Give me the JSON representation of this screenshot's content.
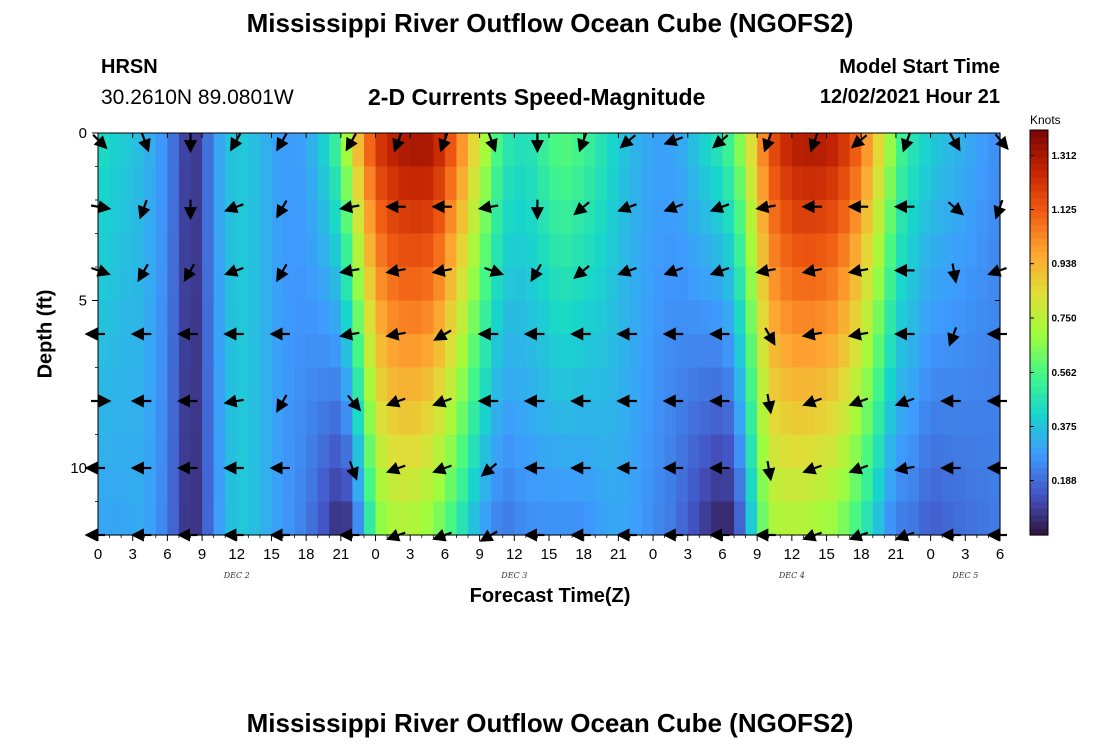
{
  "page": {
    "title": "Mississippi River Outflow Ocean Cube (NGOFS2)",
    "bottom_title": "Mississippi River Outflow Ocean Cube (NGOFS2)",
    "station_name": "HRSN",
    "station_coords": "30.2610N  89.0801W",
    "variable_title": "2-D Currents Speed-Magnitude",
    "model_start_label": "Model Start Time",
    "model_start_value": "12/02/2021 Hour 21",
    "xlabel": "Forecast Time(Z)",
    "ylabel": "Depth (ft)",
    "colorbar_unit": "Knots"
  },
  "chart_data": {
    "type": "heatmap",
    "title": "2-D Currents Speed-Magnitude",
    "xlabel": "Forecast Time(Z)",
    "ylabel": "Depth (ft)",
    "x_tick_labels": [
      "0",
      "3",
      "6",
      "9",
      "12",
      "15",
      "18",
      "21",
      "0",
      "3",
      "6",
      "9",
      "12",
      "15",
      "18",
      "21",
      "0",
      "3",
      "6",
      "9",
      "12",
      "15",
      "18",
      "21",
      "0",
      "3",
      "6"
    ],
    "x_range_hours": [
      0,
      78
    ],
    "day_labels": [
      {
        "text": "DEC 2",
        "hour": 12
      },
      {
        "text": "DEC 3",
        "hour": 36
      },
      {
        "text": "DEC 4",
        "hour": 60
      },
      {
        "text": "DEC 5",
        "hour": 75
      }
    ],
    "y_ticks": [
      0,
      5,
      10
    ],
    "ylim": [
      0,
      12
    ],
    "y_inverted": true,
    "colorbar": {
      "unit": "Knots",
      "ticks": [
        "1.312",
        "1.125",
        "0.938",
        "0.750",
        "0.562",
        "0.375",
        "0.188"
      ],
      "tick_values": [
        1.312,
        1.125,
        0.938,
        0.75,
        0.562,
        0.375,
        0.188
      ],
      "range": [
        0,
        1.4
      ],
      "colormap": [
        "#30123b",
        "#4454c4",
        "#3e9bfe",
        "#18d6cb",
        "#46f884",
        "#a2fc3c",
        "#e1dd37",
        "#fea331",
        "#f05b12",
        "#c42503",
        "#7a0403"
      ]
    },
    "depth_rows_ft": [
      0,
      1,
      2,
      3,
      4,
      5,
      6,
      7,
      8,
      9,
      10,
      11,
      12
    ],
    "speed_profile": {
      "hours": [
        0,
        2,
        4,
        6,
        7,
        8,
        9,
        10,
        12,
        14,
        16,
        18,
        20,
        21,
        22,
        23,
        24,
        25,
        27,
        29,
        31,
        33,
        35,
        37,
        39,
        40,
        42,
        44,
        46,
        48,
        50,
        52,
        54,
        55,
        56,
        57,
        58,
        60,
        62,
        64,
        66,
        68,
        69,
        70,
        72,
        74,
        76,
        78
      ],
      "surface_knots": [
        0.45,
        0.4,
        0.35,
        0.25,
        0.15,
        0.06,
        0.12,
        0.28,
        0.4,
        0.35,
        0.28,
        0.3,
        0.45,
        0.6,
        0.85,
        1.05,
        1.2,
        1.28,
        1.34,
        1.33,
        1.1,
        0.8,
        0.5,
        0.45,
        0.55,
        0.6,
        0.55,
        0.45,
        0.35,
        0.3,
        0.3,
        0.4,
        0.5,
        0.6,
        0.75,
        0.95,
        1.15,
        1.3,
        1.32,
        1.28,
        1.1,
        0.8,
        0.6,
        0.5,
        0.4,
        0.35,
        0.3,
        0.25
      ],
      "bottom_knots": [
        0.3,
        0.3,
        0.32,
        0.22,
        0.12,
        0.05,
        0.1,
        0.25,
        0.4,
        0.35,
        0.28,
        0.22,
        0.1,
        0.02,
        0.1,
        0.35,
        0.6,
        0.7,
        0.72,
        0.65,
        0.5,
        0.3,
        0.2,
        0.25,
        0.25,
        0.25,
        0.25,
        0.3,
        0.3,
        0.25,
        0.2,
        0.1,
        0.02,
        0.05,
        0.25,
        0.5,
        0.7,
        0.72,
        0.7,
        0.65,
        0.5,
        0.3,
        0.2,
        0.22,
        0.15,
        0.18,
        0.2,
        0.22
      ]
    },
    "vector_arrows": {
      "depths_ft": [
        0.2,
        2.2,
        4.1,
        6.0,
        8.0,
        10.0,
        12.0
      ],
      "hours": [
        0,
        4,
        8,
        12,
        16,
        22,
        26,
        30,
        34,
        38,
        42,
        46,
        50,
        54,
        58,
        62,
        66,
        70,
        74,
        78
      ],
      "direction_deg_by_depth": [
        [
          135,
          160,
          180,
          210,
          210,
          210,
          200,
          200,
          160,
          180,
          200,
          230,
          250,
          230,
          200,
          200,
          230,
          200,
          150,
          140
        ],
        [
          100,
          200,
          180,
          250,
          210,
          260,
          270,
          270,
          260,
          180,
          230,
          250,
          250,
          250,
          260,
          270,
          270,
          270,
          130,
          200
        ],
        [
          110,
          210,
          210,
          250,
          210,
          260,
          260,
          260,
          110,
          210,
          230,
          250,
          250,
          250,
          260,
          260,
          260,
          270,
          170,
          250
        ],
        [
          270,
          270,
          270,
          270,
          270,
          260,
          260,
          240,
          270,
          270,
          270,
          270,
          270,
          270,
          150,
          260,
          260,
          270,
          200,
          270
        ],
        [
          90,
          270,
          270,
          260,
          210,
          140,
          250,
          250,
          270,
          270,
          270,
          270,
          270,
          270,
          170,
          250,
          250,
          250,
          270,
          270
        ],
        [
          270,
          270,
          270,
          270,
          270,
          160,
          250,
          250,
          230,
          270,
          270,
          270,
          270,
          270,
          170,
          250,
          250,
          260,
          270,
          270
        ],
        [
          270,
          270,
          270,
          270,
          270,
          270,
          250,
          250,
          240,
          270,
          270,
          270,
          270,
          270,
          270,
          250,
          250,
          250,
          270,
          270
        ]
      ]
    }
  }
}
